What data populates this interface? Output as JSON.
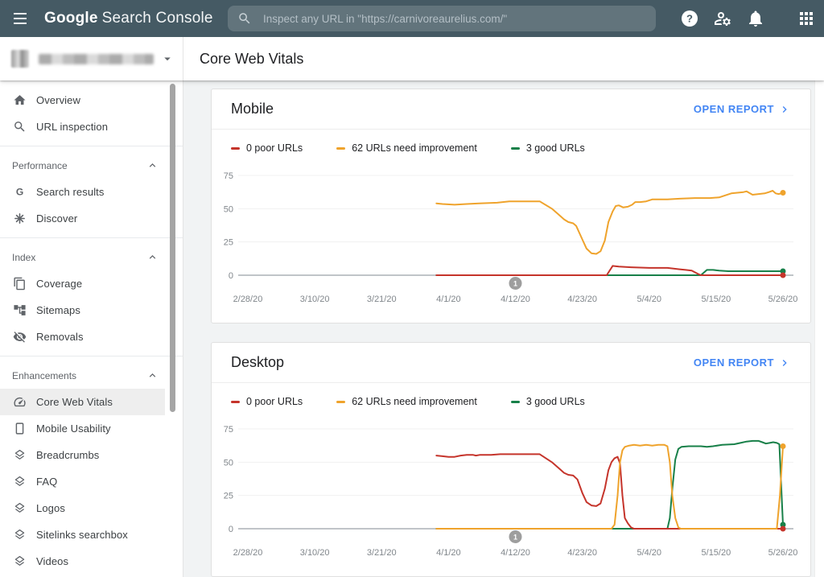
{
  "topbar": {
    "logo": {
      "bold": "Google",
      "regular": "Search Console"
    },
    "search": {
      "icon": "search",
      "placeholder": "Inspect any URL in \"https://carnivoreaurelius.com/\""
    },
    "actions": [
      {
        "icon": "help",
        "name": "help"
      },
      {
        "icon": "manage-accounts",
        "name": "manage-accounts"
      },
      {
        "icon": "notifications",
        "name": "notifications"
      },
      {
        "icon": "apps",
        "name": "apps"
      }
    ]
  },
  "subheader": {
    "property_selector": {
      "redacted": true
    },
    "page_title": "Core Web Vitals"
  },
  "sidebar": {
    "groups": [
      {
        "header": null,
        "items": [
          {
            "icon": "home",
            "label": "Overview"
          },
          {
            "icon": "search",
            "label": "URL inspection"
          }
        ]
      },
      {
        "header": "Performance",
        "items": [
          {
            "icon": "google-g",
            "label": "Search results"
          },
          {
            "icon": "discover",
            "label": "Discover"
          }
        ]
      },
      {
        "header": "Index",
        "items": [
          {
            "icon": "coverage",
            "label": "Coverage"
          },
          {
            "icon": "sitemaps",
            "label": "Sitemaps"
          },
          {
            "icon": "removals",
            "label": "Removals"
          }
        ]
      },
      {
        "header": "Enhancements",
        "items": [
          {
            "icon": "speed",
            "label": "Core Web Vitals",
            "selected": true
          },
          {
            "icon": "mobile",
            "label": "Mobile Usability"
          },
          {
            "icon": "layers",
            "label": "Breadcrumbs"
          },
          {
            "icon": "layers",
            "label": "FAQ"
          },
          {
            "icon": "layers",
            "label": "Logos"
          },
          {
            "icon": "layers",
            "label": "Sitelinks searchbox"
          },
          {
            "icon": "layers",
            "label": "Videos"
          }
        ]
      }
    ]
  },
  "cards": [
    {
      "title": "Mobile",
      "action_label": "OPEN REPORT",
      "chart_index": 0
    },
    {
      "title": "Desktop",
      "action_label": "OPEN REPORT",
      "chart_index": 1
    }
  ],
  "colors": {
    "poor": "#c5342b",
    "needs_improvement": "#efa32c",
    "good": "#188049",
    "link": "#4285f4",
    "annotation": "#9e9e9e",
    "axis": "#9aa0a6",
    "grid": "#f1f1f1",
    "tick_text": "#80868b"
  },
  "chart_data": [
    {
      "type": "line",
      "title": "Mobile",
      "ylim": [
        0,
        75
      ],
      "yticks": [
        0,
        25,
        50,
        75
      ],
      "x_domain_days": [
        0,
        88
      ],
      "x_ticks": [
        {
          "day": 0,
          "label": "2/28/20"
        },
        {
          "day": 11,
          "label": "3/10/20"
        },
        {
          "day": 22,
          "label": "3/21/20"
        },
        {
          "day": 33,
          "label": "4/1/20"
        },
        {
          "day": 44,
          "label": "4/12/20"
        },
        {
          "day": 55,
          "label": "4/23/20"
        },
        {
          "day": 66,
          "label": "5/4/20"
        },
        {
          "day": 77,
          "label": "5/15/20"
        },
        {
          "day": 88,
          "label": "5/26/20"
        }
      ],
      "annotation": {
        "label": "1",
        "day": 44
      },
      "legend_position": "top",
      "grid": true,
      "series": [
        {
          "name": "0 poor URLs",
          "color": "#c5342b",
          "z": 1,
          "points": [
            [
              31,
              0
            ],
            [
              59,
              0
            ],
            [
              60,
              7
            ],
            [
              61,
              6.5
            ],
            [
              63,
              6
            ],
            [
              66,
              5.5
            ],
            [
              69,
              5.5
            ],
            [
              70,
              5
            ],
            [
              71,
              4.5
            ],
            [
              72,
              4
            ],
            [
              73,
              3.5
            ],
            [
              74,
              1
            ],
            [
              74.5,
              0
            ],
            [
              88,
              0
            ]
          ]
        },
        {
          "name": "62 URLs need improvement",
          "color": "#efa32c",
          "z": 2,
          "points": [
            [
              31,
              54
            ],
            [
              32,
              53.5
            ],
            [
              34,
              53
            ],
            [
              36,
              53.5
            ],
            [
              38,
              54
            ],
            [
              41,
              54.5
            ],
            [
              43,
              55.5
            ],
            [
              48,
              55.5
            ],
            [
              50,
              50
            ],
            [
              51,
              46
            ],
            [
              52,
              42
            ],
            [
              52.7,
              40
            ],
            [
              53.5,
              39
            ],
            [
              54,
              37
            ],
            [
              55,
              27
            ],
            [
              55.7,
              20
            ],
            [
              56.5,
              16.5
            ],
            [
              57.3,
              16
            ],
            [
              58,
              18
            ],
            [
              58.7,
              26
            ],
            [
              59.3,
              40
            ],
            [
              60,
              48
            ],
            [
              60.5,
              52
            ],
            [
              61,
              52.5
            ],
            [
              61.7,
              51
            ],
            [
              62.5,
              51.5
            ],
            [
              63.2,
              53
            ],
            [
              63.7,
              55
            ],
            [
              64.5,
              55
            ],
            [
              65.5,
              55.5
            ],
            [
              66.5,
              57
            ],
            [
              69,
              57
            ],
            [
              71,
              57.5
            ],
            [
              73.5,
              58
            ],
            [
              76,
              58
            ],
            [
              77.5,
              58.5
            ],
            [
              78.5,
              60
            ],
            [
              79.5,
              61.5
            ],
            [
              80.5,
              62
            ],
            [
              81.5,
              62.5
            ],
            [
              82,
              63
            ],
            [
              83,
              60.5
            ],
            [
              84,
              61
            ],
            [
              85,
              61.5
            ],
            [
              85.7,
              62.5
            ],
            [
              86.3,
              63.5
            ],
            [
              86.8,
              61.5
            ],
            [
              87.3,
              61
            ],
            [
              87.7,
              61.5
            ],
            [
              88,
              62
            ]
          ]
        },
        {
          "name": "3 good URLs",
          "color": "#188049",
          "z": 0,
          "points": [
            [
              31,
              0
            ],
            [
              74.5,
              0
            ],
            [
              75.5,
              4
            ],
            [
              76.5,
              4
            ],
            [
              77.5,
              3.5
            ],
            [
              79,
              3
            ],
            [
              88,
              3
            ]
          ]
        }
      ]
    },
    {
      "type": "line",
      "title": "Desktop",
      "ylim": [
        0,
        75
      ],
      "yticks": [
        0,
        25,
        50,
        75
      ],
      "x_domain_days": [
        0,
        88
      ],
      "x_ticks": [
        {
          "day": 0,
          "label": "2/28/20"
        },
        {
          "day": 11,
          "label": "3/10/20"
        },
        {
          "day": 22,
          "label": "3/21/20"
        },
        {
          "day": 33,
          "label": "4/1/20"
        },
        {
          "day": 44,
          "label": "4/12/20"
        },
        {
          "day": 55,
          "label": "4/23/20"
        },
        {
          "day": 66,
          "label": "5/4/20"
        },
        {
          "day": 77,
          "label": "5/15/20"
        },
        {
          "day": 88,
          "label": "5/26/20"
        }
      ],
      "annotation": {
        "label": "1",
        "day": 44
      },
      "legend_position": "top",
      "grid": true,
      "series": [
        {
          "name": "0 poor URLs",
          "color": "#c5342b",
          "z": 1,
          "points": [
            [
              31,
              55
            ],
            [
              32,
              54.5
            ],
            [
              33,
              54
            ],
            [
              34,
              54
            ],
            [
              35,
              55
            ],
            [
              36,
              55.5
            ],
            [
              37,
              55.5
            ],
            [
              37.5,
              55
            ],
            [
              38.2,
              55.5
            ],
            [
              40,
              55.5
            ],
            [
              41.5,
              56
            ],
            [
              48,
              56
            ],
            [
              50,
              50
            ],
            [
              51,
              46
            ],
            [
              52,
              42
            ],
            [
              52.7,
              40.5
            ],
            [
              53.5,
              40
            ],
            [
              54.2,
              37
            ],
            [
              55,
              27
            ],
            [
              55.7,
              20
            ],
            [
              56.5,
              17.5
            ],
            [
              57.3,
              17
            ],
            [
              58,
              19
            ],
            [
              58.7,
              30
            ],
            [
              59.3,
              44
            ],
            [
              59.8,
              50
            ],
            [
              60.3,
              53
            ],
            [
              60.8,
              54
            ],
            [
              61.2,
              49
            ],
            [
              61.6,
              25
            ],
            [
              62,
              8
            ],
            [
              62.5,
              4
            ],
            [
              63,
              1
            ],
            [
              63.5,
              0
            ],
            [
              88,
              0
            ]
          ]
        },
        {
          "name": "62 URLs need improvement",
          "color": "#efa32c",
          "z": 2,
          "points": [
            [
              31,
              0
            ],
            [
              59.8,
              0
            ],
            [
              60.3,
              3
            ],
            [
              60.8,
              25
            ],
            [
              61.2,
              50
            ],
            [
              61.6,
              59
            ],
            [
              62,
              61.5
            ],
            [
              62.7,
              62.5
            ],
            [
              63.5,
              63
            ],
            [
              64.5,
              62.5
            ],
            [
              65.5,
              63
            ],
            [
              66.5,
              62.5
            ],
            [
              67.5,
              63
            ],
            [
              68.5,
              63
            ],
            [
              69,
              62
            ],
            [
              69.4,
              50
            ],
            [
              69.8,
              25
            ],
            [
              70.3,
              8
            ],
            [
              70.8,
              1
            ],
            [
              71.2,
              0
            ],
            [
              87,
              0
            ],
            [
              87.5,
              25
            ],
            [
              88,
              62
            ]
          ]
        },
        {
          "name": "3 good URLs",
          "color": "#188049",
          "z": 0,
          "points": [
            [
              31,
              0
            ],
            [
              69,
              0
            ],
            [
              69.4,
              8
            ],
            [
              69.8,
              30
            ],
            [
              70.3,
              52
            ],
            [
              70.8,
              60
            ],
            [
              71.3,
              61.5
            ],
            [
              72.5,
              62
            ],
            [
              74.5,
              62
            ],
            [
              75.5,
              61.5
            ],
            [
              76.5,
              62
            ],
            [
              78,
              63
            ],
            [
              80,
              63.5
            ],
            [
              81,
              64.5
            ],
            [
              82,
              65.5
            ],
            [
              83,
              66
            ],
            [
              84,
              66
            ],
            [
              84.6,
              65
            ],
            [
              85.2,
              64
            ],
            [
              85.8,
              64.5
            ],
            [
              86.4,
              65
            ],
            [
              87,
              64.5
            ],
            [
              87.4,
              63.5
            ],
            [
              88,
              3
            ]
          ]
        }
      ]
    }
  ]
}
